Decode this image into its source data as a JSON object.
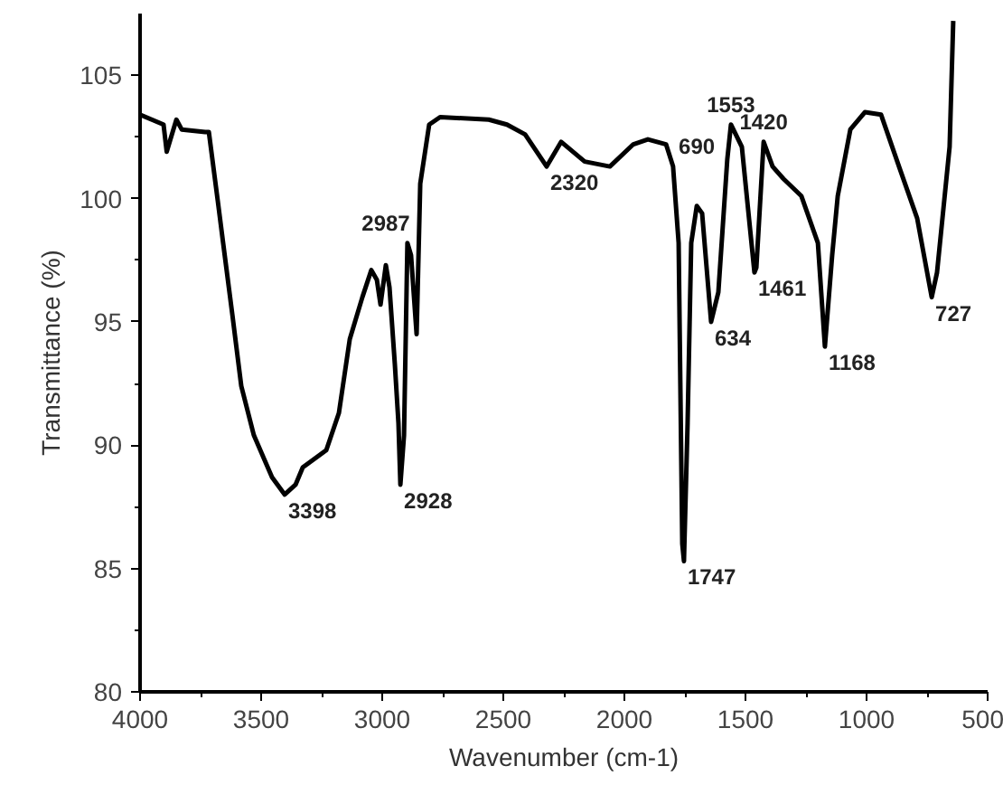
{
  "chart_data": {
    "type": "line",
    "xlabel": "Wavenumber (cm-1)",
    "ylabel": "Transmittance (%)",
    "xlim": [
      4000,
      500
    ],
    "xticks": [
      4000,
      3500,
      3000,
      2500,
      2000,
      1500,
      1000,
      500
    ],
    "ylim": [
      80,
      107.5
    ],
    "yticks": [
      80,
      85,
      90,
      95,
      100,
      105
    ],
    "grid": false,
    "marker": "none",
    "line_style": "solid",
    "series": [
      {
        "color": "#000000",
        "x": [
          4000,
          3903,
          3890,
          3850,
          3828,
          3731,
          3716,
          3679,
          3657,
          3619,
          3582,
          3530,
          3455,
          3403,
          3358,
          3328,
          3231,
          3179,
          3134,
          3082,
          3045,
          3022,
          3007,
          2985,
          2970,
          2948,
          2933,
          2925,
          2910,
          2896,
          2881,
          2858,
          2843,
          2806,
          2761,
          2560,
          2485,
          2410,
          2321,
          2261,
          2164,
          2060,
          1963,
          1903,
          1828,
          1799,
          1776,
          1761,
          1754,
          1739,
          1724,
          1701,
          1679,
          1642,
          1612,
          1575,
          1560,
          1515,
          1463,
          1455,
          1425,
          1388,
          1343,
          1269,
          1201,
          1172,
          1142,
          1119,
          1067,
          1007,
          940,
          866,
          791,
          731,
          709,
          657,
          642
        ],
        "values": [
          103.4,
          103.0,
          101.9,
          103.2,
          102.8,
          102.7,
          102.7,
          99.9,
          98.2,
          95.3,
          92.4,
          90.4,
          88.7,
          88.0,
          88.4,
          89.1,
          89.8,
          91.3,
          94.3,
          96.0,
          97.1,
          96.7,
          95.7,
          97.3,
          96.4,
          93.3,
          90.9,
          88.4,
          90.4,
          98.2,
          97.7,
          94.5,
          100.6,
          103.0,
          103.3,
          103.2,
          103.0,
          102.6,
          101.3,
          102.3,
          101.5,
          101.3,
          102.2,
          102.4,
          102.2,
          101.3,
          98.2,
          86.0,
          85.3,
          90.9,
          98.2,
          99.7,
          99.4,
          95.0,
          96.2,
          101.6,
          103.0,
          102.1,
          97.0,
          97.2,
          102.3,
          101.3,
          100.8,
          100.1,
          98.2,
          94.0,
          97.7,
          100.1,
          102.8,
          103.5,
          103.4,
          101.3,
          99.2,
          96.0,
          97.0,
          102.1,
          107.2
        ]
      }
    ],
    "annotations": [
      {
        "text": "3398",
        "x": 3403,
        "y": 88.0
      },
      {
        "text": "2987",
        "x": 2985,
        "y": 97.3
      },
      {
        "text": "2928",
        "x": 2925,
        "y": 88.4
      },
      {
        "text": "2320",
        "x": 2321,
        "y": 101.3
      },
      {
        "text": "690",
        "x": 1701,
        "y": 99.7
      },
      {
        "text": "634",
        "x": 1642,
        "y": 95.0
      },
      {
        "text": "1553",
        "x": 1560,
        "y": 103.0
      },
      {
        "text": "1420",
        "x": 1425,
        "y": 102.3
      },
      {
        "text": "1461",
        "x": 1463,
        "y": 97.0
      },
      {
        "text": "1168",
        "x": 1172,
        "y": 94.0
      },
      {
        "text": "727",
        "x": 731,
        "y": 96.0
      },
      {
        "text": "1747",
        "x": 1754,
        "y": 85.3
      }
    ]
  }
}
